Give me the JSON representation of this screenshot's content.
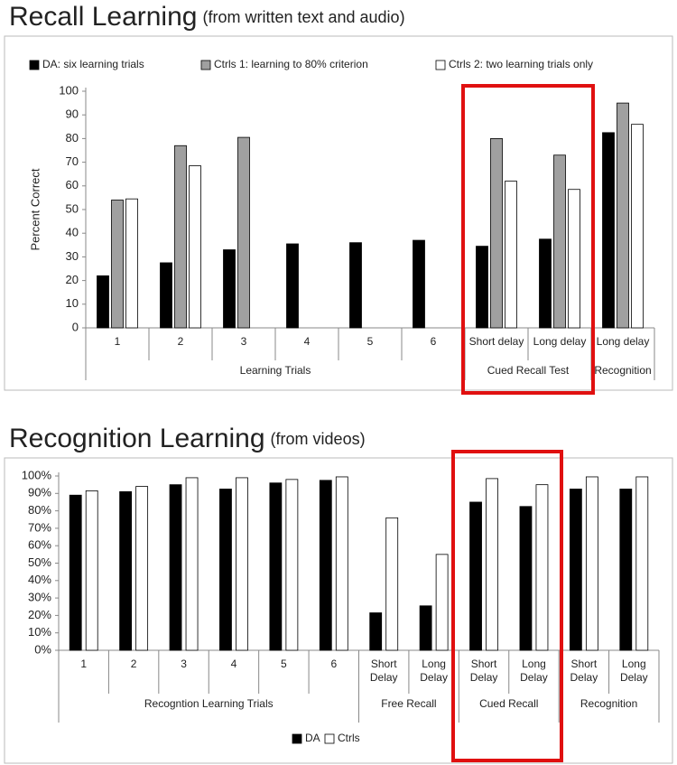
{
  "chart_data": [
    {
      "type": "bar",
      "title": "Recall Learning",
      "subtitle": "(from written text and audio)",
      "ylabel": "Percent Correct",
      "groups": [
        {
          "label": "Learning Trials",
          "categories": [
            "1",
            "2",
            "3",
            "4",
            "5",
            "6"
          ]
        },
        {
          "label": "Cued Recall Test",
          "categories": [
            "Short delay",
            "Long delay"
          ]
        },
        {
          "label": "Recognition",
          "categories": [
            "Long delay"
          ]
        }
      ],
      "series": [
        {
          "name": "DA: six learning trials",
          "color": "#000000",
          "values": [
            22,
            27.5,
            33,
            35.5,
            36,
            37,
            34.5,
            37.5,
            82.5
          ]
        },
        {
          "name": "Ctrls 1: learning to 80% criterion",
          "color": "#a0a0a0",
          "values": [
            54,
            77,
            80.5,
            null,
            null,
            null,
            80,
            73,
            95
          ]
        },
        {
          "name": "Ctrls 2: two learning trials only",
          "color": "#ffffff",
          "values": [
            54.5,
            68.5,
            null,
            null,
            null,
            null,
            62,
            58.5,
            86
          ]
        }
      ],
      "ylim": [
        0,
        100
      ],
      "yticks": [
        0,
        10,
        20,
        30,
        40,
        50,
        60,
        70,
        80,
        90,
        100
      ],
      "legend": "top"
    },
    {
      "type": "bar",
      "title": "Recognition Learning",
      "subtitle": "(from videos)",
      "groups": [
        {
          "label": "Recogntion Learning Trials",
          "categories": [
            "1",
            "2",
            "3",
            "4",
            "5",
            "6"
          ]
        },
        {
          "label": "Free Recall",
          "categories": [
            "Short Delay",
            "Long Delay"
          ]
        },
        {
          "label": "Cued Recall",
          "categories": [
            "Short Delay",
            "Long Delay"
          ]
        },
        {
          "label": "Recognition",
          "categories": [
            "Short Delay",
            "Long Delay"
          ]
        }
      ],
      "series": [
        {
          "name": "DA",
          "color": "#000000",
          "values": [
            89,
            91,
            95,
            92.5,
            96,
            97.5,
            21.5,
            25.5,
            85,
            82.5,
            92.5,
            92.5
          ]
        },
        {
          "name": "Ctrls",
          "color": "#ffffff",
          "values": [
            91.5,
            94,
            99,
            99,
            98,
            99.5,
            76,
            55,
            98.5,
            95,
            99.5,
            99.5
          ]
        }
      ],
      "ylim": [
        0,
        100
      ],
      "yticks": [
        {
          "value": 0,
          "label": "0%"
        },
        {
          "value": 10,
          "label": "10%"
        },
        {
          "value": 20,
          "label": "20%"
        },
        {
          "value": 30,
          "label": "30%"
        },
        {
          "value": 40,
          "label": "40%"
        },
        {
          "value": 50,
          "label": "50%"
        },
        {
          "value": 60,
          "label": "60%"
        },
        {
          "value": 70,
          "label": "70%"
        },
        {
          "value": 80,
          "label": "80%"
        },
        {
          "value": 90,
          "label": "90%"
        },
        {
          "value": 100,
          "label": "100%"
        }
      ],
      "legend": "bottom"
    }
  ]
}
